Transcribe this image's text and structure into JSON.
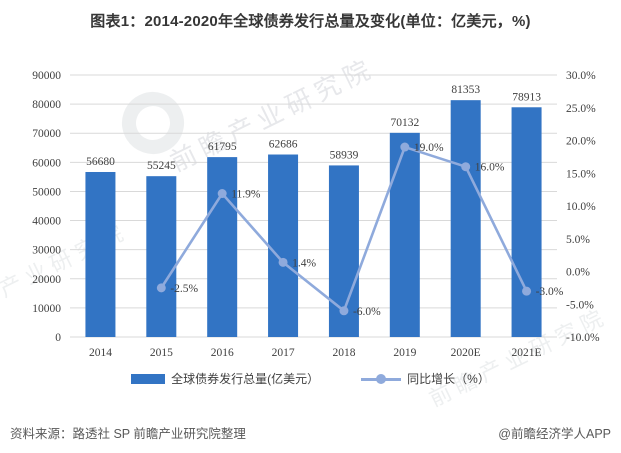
{
  "title": "图表1：2014-2020年全球债券发行总量及变化(单位：亿美元，%)",
  "watermark": {
    "name": "前瞻产业研究院"
  },
  "colors": {
    "bar": "#3274C4",
    "line": "#8FAADC",
    "grid": "#D9D9D9",
    "text": "#404040",
    "footer_text": "#595959"
  },
  "legend": {
    "items": [
      {
        "label": "全球债券发行总量(亿美元）"
      },
      {
        "label": "同比增长（%）"
      }
    ]
  },
  "footer": {
    "source": "资料来源：路透社 SP 前瞻产业研究院整理",
    "brand": "@前瞻经济学人APP"
  },
  "chart_data": {
    "type": "bar",
    "categories": [
      "2014",
      "2015",
      "2016",
      "2017",
      "2018",
      "2019",
      "2020E",
      "2021E"
    ],
    "series": [
      {
        "name": "全球债券发行总量(亿美元）",
        "type": "bar",
        "axis": "left",
        "values": [
          56680,
          55245,
          61795,
          62686,
          58939,
          70132,
          81353,
          78913
        ],
        "labels": [
          "56680",
          "55245",
          "61795",
          "62686",
          "58939",
          "70132",
          "81353",
          "78913"
        ]
      },
      {
        "name": "同比增长（%）",
        "type": "line",
        "axis": "right",
        "values": [
          null,
          -2.5,
          11.9,
          1.4,
          -6.0,
          19.0,
          16.0,
          -3.0
        ],
        "labels": [
          "",
          "-2.5%",
          "11.9%",
          "1.4%",
          "-6.0%",
          "19.0%",
          "16.0%",
          "-3.0%"
        ]
      }
    ],
    "left_axis": {
      "min": 0,
      "max": 90000,
      "step": 10000,
      "ticks": [
        "0",
        "10000",
        "20000",
        "30000",
        "40000",
        "50000",
        "60000",
        "70000",
        "80000",
        "90000"
      ]
    },
    "right_axis": {
      "min": -10,
      "max": 30,
      "step": 5,
      "ticks": [
        "-10.0%",
        "-5.0%",
        "0.0%",
        "5.0%",
        "10.0%",
        "15.0%",
        "20.0%",
        "25.0%",
        "30.0%"
      ]
    },
    "grid": true,
    "legend_position": "bottom",
    "title": "图表1：2014-2020年全球债券发行总量及变化(单位：亿美元，%)"
  }
}
